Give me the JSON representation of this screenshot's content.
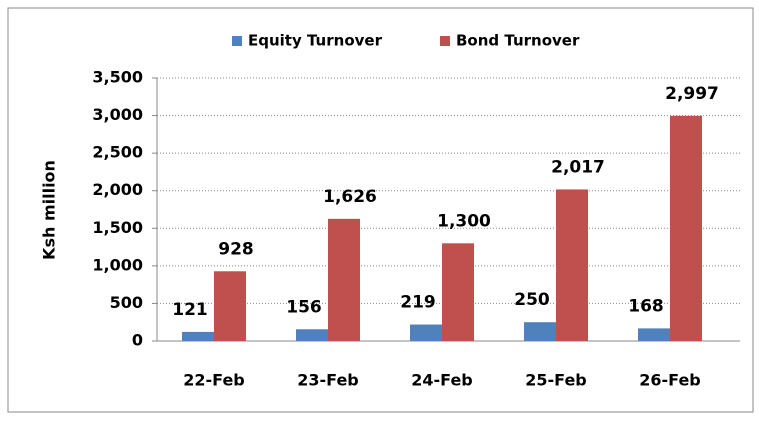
{
  "chart_data": {
    "type": "bar",
    "y_label": "Ksh million",
    "categories": [
      "22-Feb",
      "23-Feb",
      "24-Feb",
      "25-Feb",
      "26-Feb"
    ],
    "series": [
      {
        "name": "Equity Turnover",
        "color": "#4f81bd",
        "values": [
          121,
          156,
          219,
          250,
          168
        ]
      },
      {
        "name": "Bond Turnover",
        "color": "#c0504d",
        "values": [
          928,
          1626,
          1300,
          2017,
          2997
        ],
        "value_labels": [
          "928",
          "1,626",
          "1,300",
          "2,017",
          "2,997"
        ]
      }
    ],
    "ylim": [
      0,
      3500
    ],
    "yticks": [
      0,
      500,
      {
        "value": 1000,
        "label": "1,000"
      },
      {
        "value": 1500,
        "label": "1,500"
      },
      {
        "value": 2000,
        "label": "2,000"
      },
      {
        "value": 2500,
        "label": "2,500"
      },
      {
        "value": 3000,
        "label": "3,000"
      },
      {
        "value": 3500,
        "label": "3,500"
      }
    ],
    "grid": true,
    "legend": "top"
  }
}
